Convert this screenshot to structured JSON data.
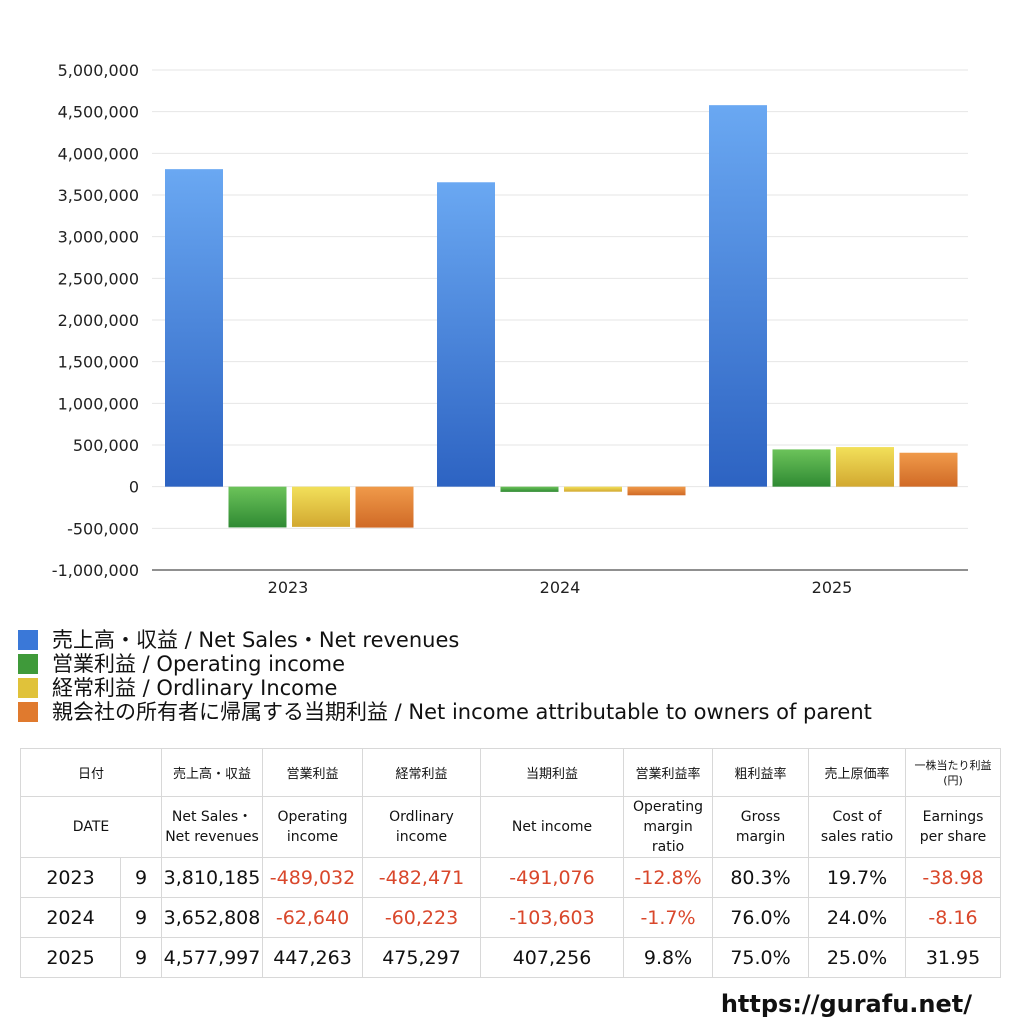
{
  "chart_data": {
    "type": "bar",
    "categories": [
      "2023",
      "2024",
      "2025"
    ],
    "ylim": [
      -1000000,
      5000000
    ],
    "yticks": [
      "5,000,000",
      "4,500,000",
      "4,000,000",
      "3,500,000",
      "3,000,000",
      "2,500,000",
      "2,000,000",
      "1,500,000",
      "1,000,000",
      "500,000",
      "0",
      "-500,000",
      "-1,000,000"
    ],
    "grid": true,
    "legend_position": "bottom",
    "series": [
      {
        "name": "売上高・収益 / Net Sales・Net revenues",
        "values": [
          3810185,
          3652808,
          4577997
        ],
        "color": "#3a78d8"
      },
      {
        "name": "営業利益 / Operating income",
        "values": [
          -489032,
          -62640,
          447263
        ],
        "color": "#3f9a3a"
      },
      {
        "name": "経常利益 / Ordlinary Income",
        "values": [
          -482471,
          -60223,
          475297
        ],
        "color": "#e0c23a"
      },
      {
        "name": "親会社の所有者に帰属する当期利益 / Net income attributable to owners of parent",
        "values": [
          -491076,
          -103603,
          407256
        ],
        "color": "#e07a2e"
      }
    ]
  },
  "table": {
    "header_jp": {
      "date": "日付",
      "sales": "売上高・収益",
      "op": "営業利益",
      "ord": "経常利益",
      "net": "当期利益",
      "opm": "営業利益率",
      "gross": "粗利益率",
      "cost": "売上原価率",
      "eps": "一株当たり利益\n(円)"
    },
    "header_en": {
      "date": "DATE",
      "sales": "Net Sales・\nNet revenues",
      "op": "Operating\nincome",
      "ord": "Ordlinary\nincome",
      "net": "Net income",
      "opm": "Operating\nmargin\nratio",
      "gross": "Gross\nmargin",
      "cost": "Cost of\nsales ratio",
      "eps": "Earnings\nper share"
    },
    "rows": [
      {
        "year": "2023",
        "month": "9",
        "sales": "3,810,185",
        "op": "-489,032",
        "ord": "-482,471",
        "net": "-491,076",
        "opm": "-12.8%",
        "gross": "80.3%",
        "cost": "19.7%",
        "eps": "-38.98"
      },
      {
        "year": "2024",
        "month": "9",
        "sales": "3,652,808",
        "op": "-62,640",
        "ord": "-60,223",
        "net": "-103,603",
        "opm": "-1.7%",
        "gross": "76.0%",
        "cost": "24.0%",
        "eps": "-8.16"
      },
      {
        "year": "2025",
        "month": "9",
        "sales": "4,577,997",
        "op": "447,263",
        "ord": "475,297",
        "net": "407,256",
        "opm": "9.8%",
        "gross": "75.0%",
        "cost": "25.0%",
        "eps": "31.95"
      }
    ]
  },
  "footer": {
    "url": "https://gurafu.net/"
  }
}
